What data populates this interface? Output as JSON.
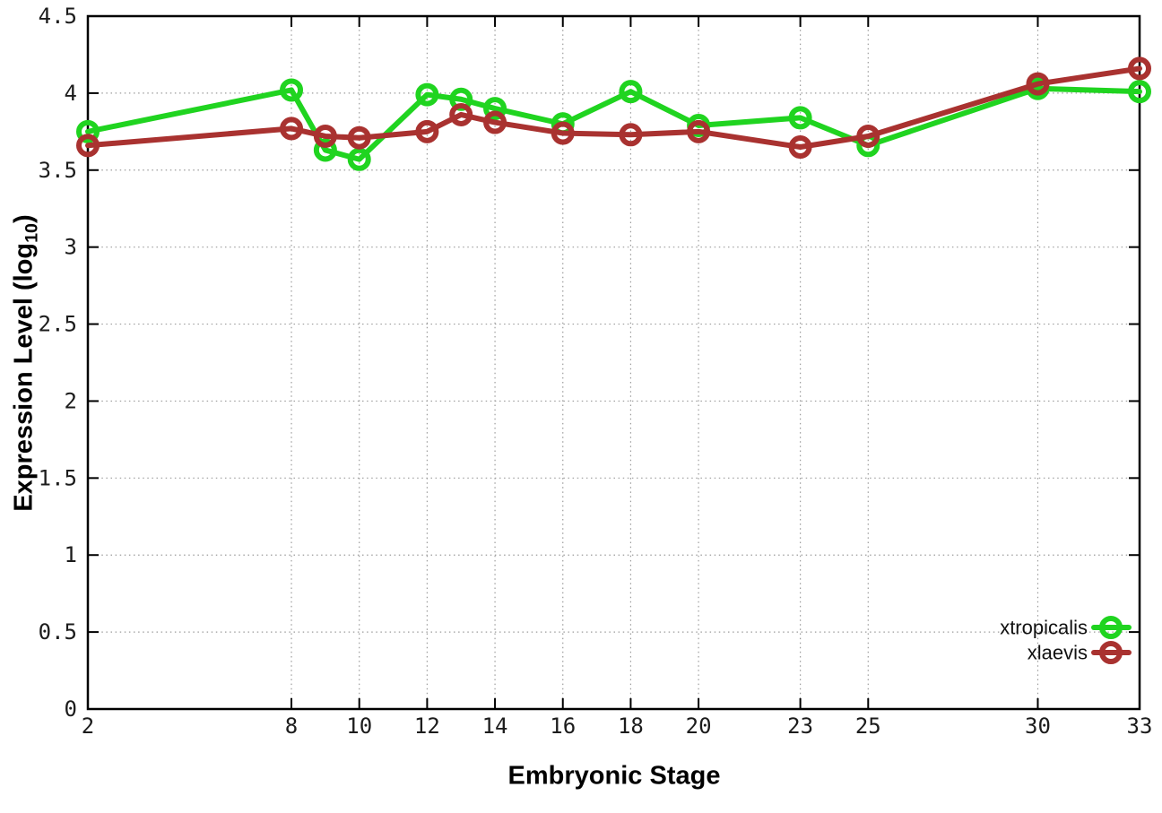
{
  "chart_data": {
    "type": "line",
    "title": "",
    "xlabel": "Embryonic Stage",
    "ylabel": "Expression Level (log10)",
    "ylabel_parts": {
      "main": "Expression Level (log",
      "sub": "10",
      "close": ")"
    },
    "xlim": [
      2,
      33
    ],
    "ylim": [
      0,
      4.5
    ],
    "xticks": [
      2,
      8,
      10,
      12,
      14,
      16,
      18,
      20,
      23,
      25,
      30,
      33
    ],
    "yticks": [
      0,
      0.5,
      1,
      1.5,
      2,
      2.5,
      3,
      3.5,
      4,
      4.5
    ],
    "grid": true,
    "legend_position": "inside-bottom-right",
    "x": [
      2,
      8,
      9,
      10,
      12,
      13,
      14,
      16,
      18,
      20,
      23,
      25,
      30,
      33
    ],
    "series": [
      {
        "name": "xtropicalis",
        "color": "#20d420",
        "values": [
          3.75,
          4.02,
          3.63,
          3.57,
          3.99,
          3.96,
          3.9,
          3.8,
          4.01,
          3.79,
          3.84,
          3.66,
          4.03,
          4.01
        ]
      },
      {
        "name": "xlaevis",
        "color": "#a93230",
        "values": [
          3.66,
          3.77,
          3.72,
          3.71,
          3.75,
          3.86,
          3.81,
          3.74,
          3.73,
          3.75,
          3.65,
          3.72,
          4.06,
          4.16
        ]
      }
    ],
    "styles": {
      "grid_color": "#9b9b9b",
      "border_color": "#000000",
      "tick_label_color": "#1c1c1c",
      "background": "#ffffff"
    }
  }
}
